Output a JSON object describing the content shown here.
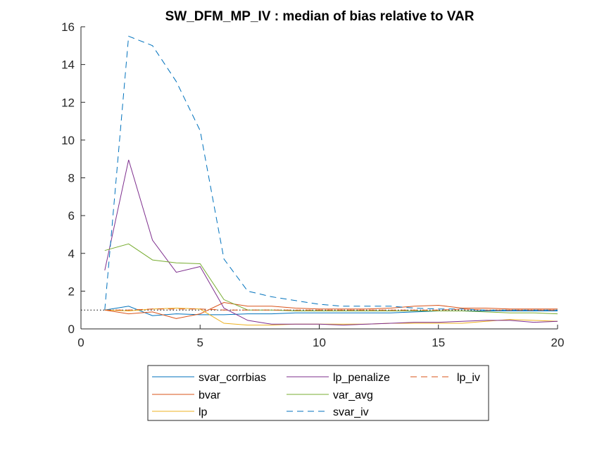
{
  "chart_data": {
    "type": "line",
    "title": "SW_DFM_MP_IV : median of bias relative to VAR",
    "xlabel": "",
    "ylabel": "",
    "xlim": [
      0,
      20
    ],
    "ylim": [
      0,
      16
    ],
    "xticks": [
      0,
      5,
      10,
      15,
      20
    ],
    "yticks": [
      0,
      2,
      4,
      6,
      8,
      10,
      12,
      14,
      16
    ],
    "grid": false,
    "legend_position": "bottom-outside",
    "reference_line": {
      "y": 1,
      "style": "dotted",
      "color": "#000000"
    },
    "x": [
      1,
      2,
      3,
      4,
      5,
      6,
      7,
      8,
      9,
      10,
      11,
      12,
      13,
      14,
      15,
      16,
      17,
      18,
      19,
      20
    ],
    "series": [
      {
        "name": "svar_corrbias",
        "color": "#0072BD",
        "dash": "solid",
        "values": [
          1.0,
          1.2,
          0.7,
          0.8,
          0.75,
          0.75,
          0.8,
          0.8,
          0.85,
          0.85,
          0.85,
          0.85,
          0.85,
          0.9,
          0.95,
          0.95,
          0.95,
          0.95,
          0.95,
          0.95
        ]
      },
      {
        "name": "bvar",
        "color": "#D95319",
        "dash": "solid",
        "values": [
          1.0,
          0.8,
          0.9,
          0.55,
          0.8,
          1.4,
          1.2,
          1.2,
          1.1,
          1.05,
          1.05,
          1.05,
          1.1,
          1.2,
          1.25,
          1.1,
          1.1,
          1.05,
          1.05,
          1.05
        ]
      },
      {
        "name": "lp",
        "color": "#EDB120",
        "dash": "solid",
        "values": [
          1.0,
          0.95,
          1.05,
          1.1,
          1.05,
          0.3,
          0.2,
          0.2,
          0.25,
          0.25,
          0.25,
          0.25,
          0.3,
          0.3,
          0.3,
          0.3,
          0.4,
          0.5,
          0.45,
          0.4
        ]
      },
      {
        "name": "lp_penalize",
        "color": "#7E2F8E",
        "dash": "solid",
        "values": [
          3.1,
          8.95,
          4.7,
          3.0,
          3.3,
          1.1,
          0.45,
          0.25,
          0.25,
          0.25,
          0.2,
          0.25,
          0.3,
          0.35,
          0.35,
          0.4,
          0.45,
          0.45,
          0.35,
          0.4
        ]
      },
      {
        "name": "var_avg",
        "color": "#77AC30",
        "dash": "solid",
        "values": [
          4.15,
          4.5,
          3.65,
          3.5,
          3.45,
          1.55,
          1.0,
          1.0,
          0.95,
          0.95,
          0.95,
          0.95,
          0.95,
          0.95,
          0.95,
          0.95,
          0.9,
          0.85,
          0.85,
          0.8
        ]
      },
      {
        "name": "svar_iv",
        "color": "#0072BD",
        "dash": "dashed",
        "values": [
          1.0,
          15.5,
          15.0,
          13.1,
          10.5,
          3.7,
          2.0,
          1.7,
          1.5,
          1.3,
          1.2,
          1.2,
          1.2,
          1.1,
          1.05,
          1.05,
          1.0,
          1.0,
          1.0,
          1.0
        ]
      },
      {
        "name": "lp_iv",
        "color": "#D95319",
        "dash": "dashed",
        "values": [
          1.0,
          1.0,
          1.05,
          1.05,
          1.05,
          1.0,
          1.0,
          1.0,
          1.0,
          1.0,
          1.0,
          1.0,
          1.0,
          1.0,
          1.0,
          1.05,
          1.0,
          1.0,
          1.0,
          1.0
        ]
      }
    ],
    "legend_order": [
      [
        "svar_corrbias",
        "lp_penalize",
        "lp_iv"
      ],
      [
        "bvar",
        "var_avg"
      ],
      [
        "lp",
        "svar_iv"
      ]
    ]
  }
}
